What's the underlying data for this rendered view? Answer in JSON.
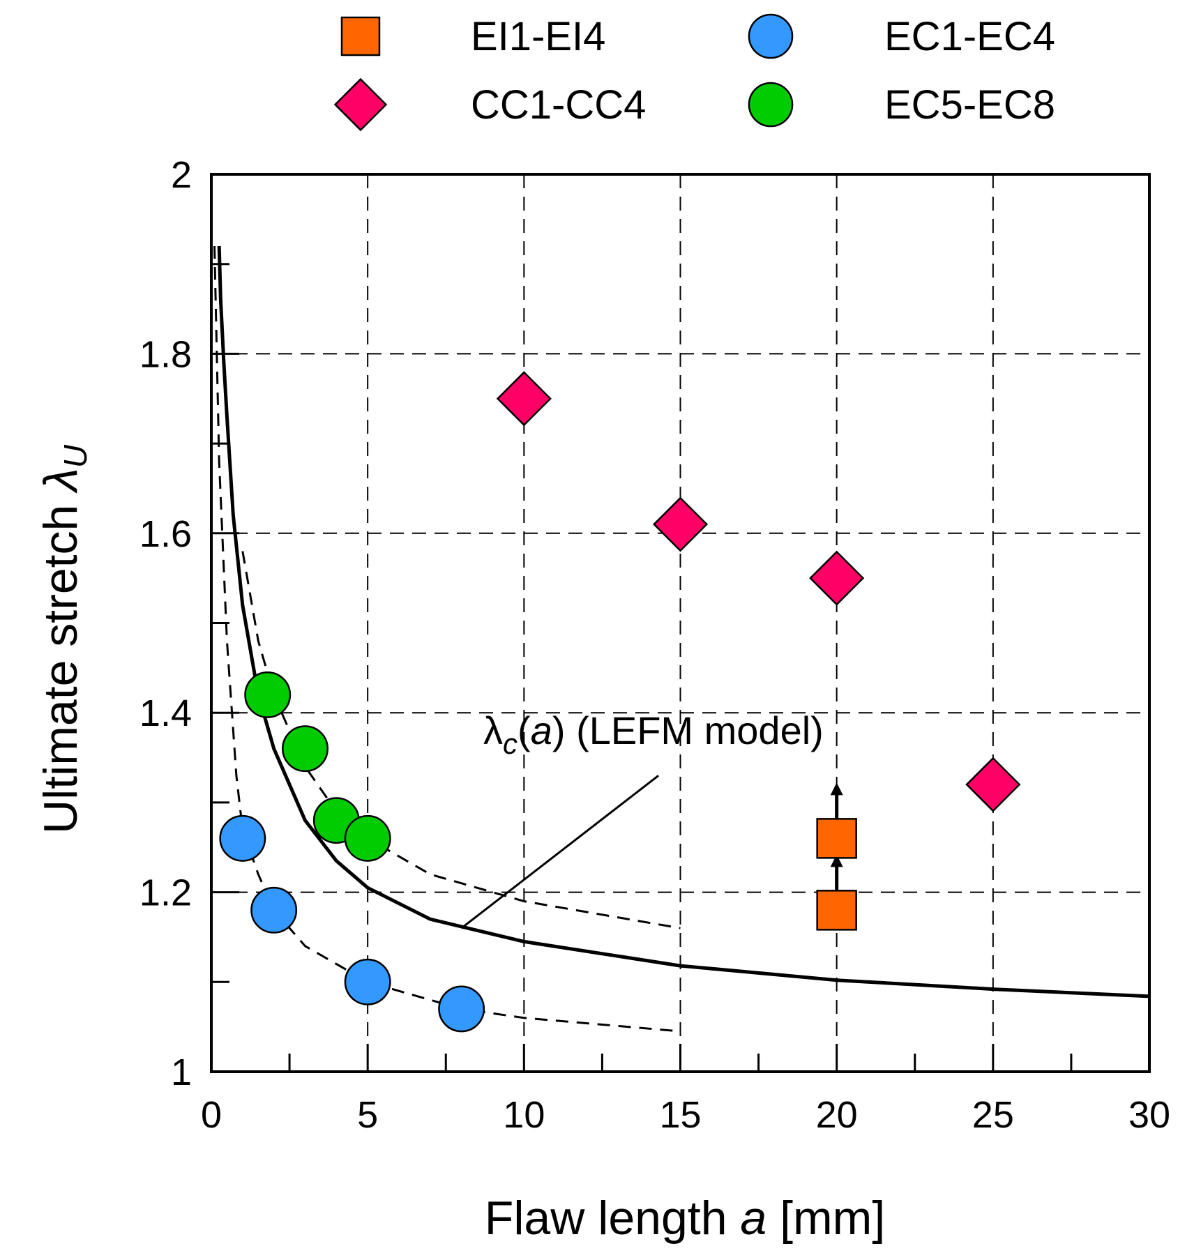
{
  "chart_data": {
    "type": "scatter",
    "xlabel": {
      "prefix": "Flaw length ",
      "var": "a",
      "suffix": " [mm]"
    },
    "ylabel": {
      "prefix": "Ultimate stretch ",
      "var": "λ",
      "sub": "U"
    },
    "xlim": [
      0,
      30
    ],
    "ylim": [
      1,
      2
    ],
    "x_ticks": [
      0,
      5,
      10,
      15,
      20,
      25,
      30
    ],
    "x_tick_labels": [
      "0",
      "5",
      "10",
      "15",
      "20",
      "25",
      "30"
    ],
    "y_ticks": [
      1,
      1.2,
      1.4,
      1.6,
      1.8,
      2
    ],
    "y_tick_labels": [
      "1",
      "1.2",
      "1.4",
      "1.6",
      "1.8",
      "2"
    ],
    "grid": true,
    "legend_position": "top",
    "series": [
      {
        "name": "EI1-EI4",
        "marker": "square",
        "color": "#ff6600",
        "points": [
          [
            20,
            1.18
          ],
          [
            20,
            1.26
          ]
        ],
        "lower_bound_arrows": true
      },
      {
        "name": "CC1-CC4",
        "marker": "diamond",
        "color": "#ff0066",
        "points": [
          [
            10,
            1.75
          ],
          [
            15,
            1.61
          ],
          [
            20,
            1.55
          ],
          [
            25,
            1.32
          ]
        ]
      },
      {
        "name": "EC1-EC4",
        "marker": "circle",
        "color": "#3399ff",
        "points": [
          [
            1,
            1.26
          ],
          [
            2,
            1.18
          ],
          [
            5,
            1.1
          ],
          [
            8,
            1.07
          ]
        ]
      },
      {
        "name": "EC5-EC8",
        "marker": "circle",
        "color": "#00cc00",
        "points": [
          [
            1.8,
            1.42
          ],
          [
            3,
            1.36
          ],
          [
            4,
            1.28
          ],
          [
            5,
            1.26
          ]
        ]
      }
    ],
    "curves": [
      {
        "style": "solid",
        "x": [
          0.25,
          0.3,
          0.4,
          0.5,
          0.7,
          1,
          1.5,
          2,
          3,
          4,
          5,
          7,
          10,
          15,
          20,
          25,
          30
        ],
        "y": [
          1.92,
          1.86,
          1.79,
          1.73,
          1.62,
          1.52,
          1.42,
          1.36,
          1.28,
          1.235,
          1.205,
          1.17,
          1.145,
          1.118,
          1.102,
          1.092,
          1.084
        ]
      },
      {
        "style": "dashed",
        "x": [
          1,
          1.5,
          2,
          3,
          4,
          5,
          7,
          10,
          15
        ],
        "y": [
          1.58,
          1.48,
          1.42,
          1.34,
          1.29,
          1.26,
          1.22,
          1.19,
          1.16
        ]
      },
      {
        "style": "dashed",
        "x": [
          0.1,
          0.25,
          0.5,
          0.8,
          1,
          1.5,
          2,
          3,
          5,
          8,
          10,
          15
        ],
        "y": [
          1.92,
          1.68,
          1.48,
          1.33,
          1.27,
          1.22,
          1.18,
          1.14,
          1.1,
          1.07,
          1.06,
          1.045
        ]
      }
    ],
    "annotation": {
      "sym": "λ",
      "sub": "c",
      "open": "(",
      "var": "a",
      "rest": ") (LEFM model)",
      "text_at": [
        8.7,
        1.365
      ],
      "line_from": [
        14.3,
        1.33
      ],
      "line_to": [
        8,
        1.16
      ]
    }
  }
}
